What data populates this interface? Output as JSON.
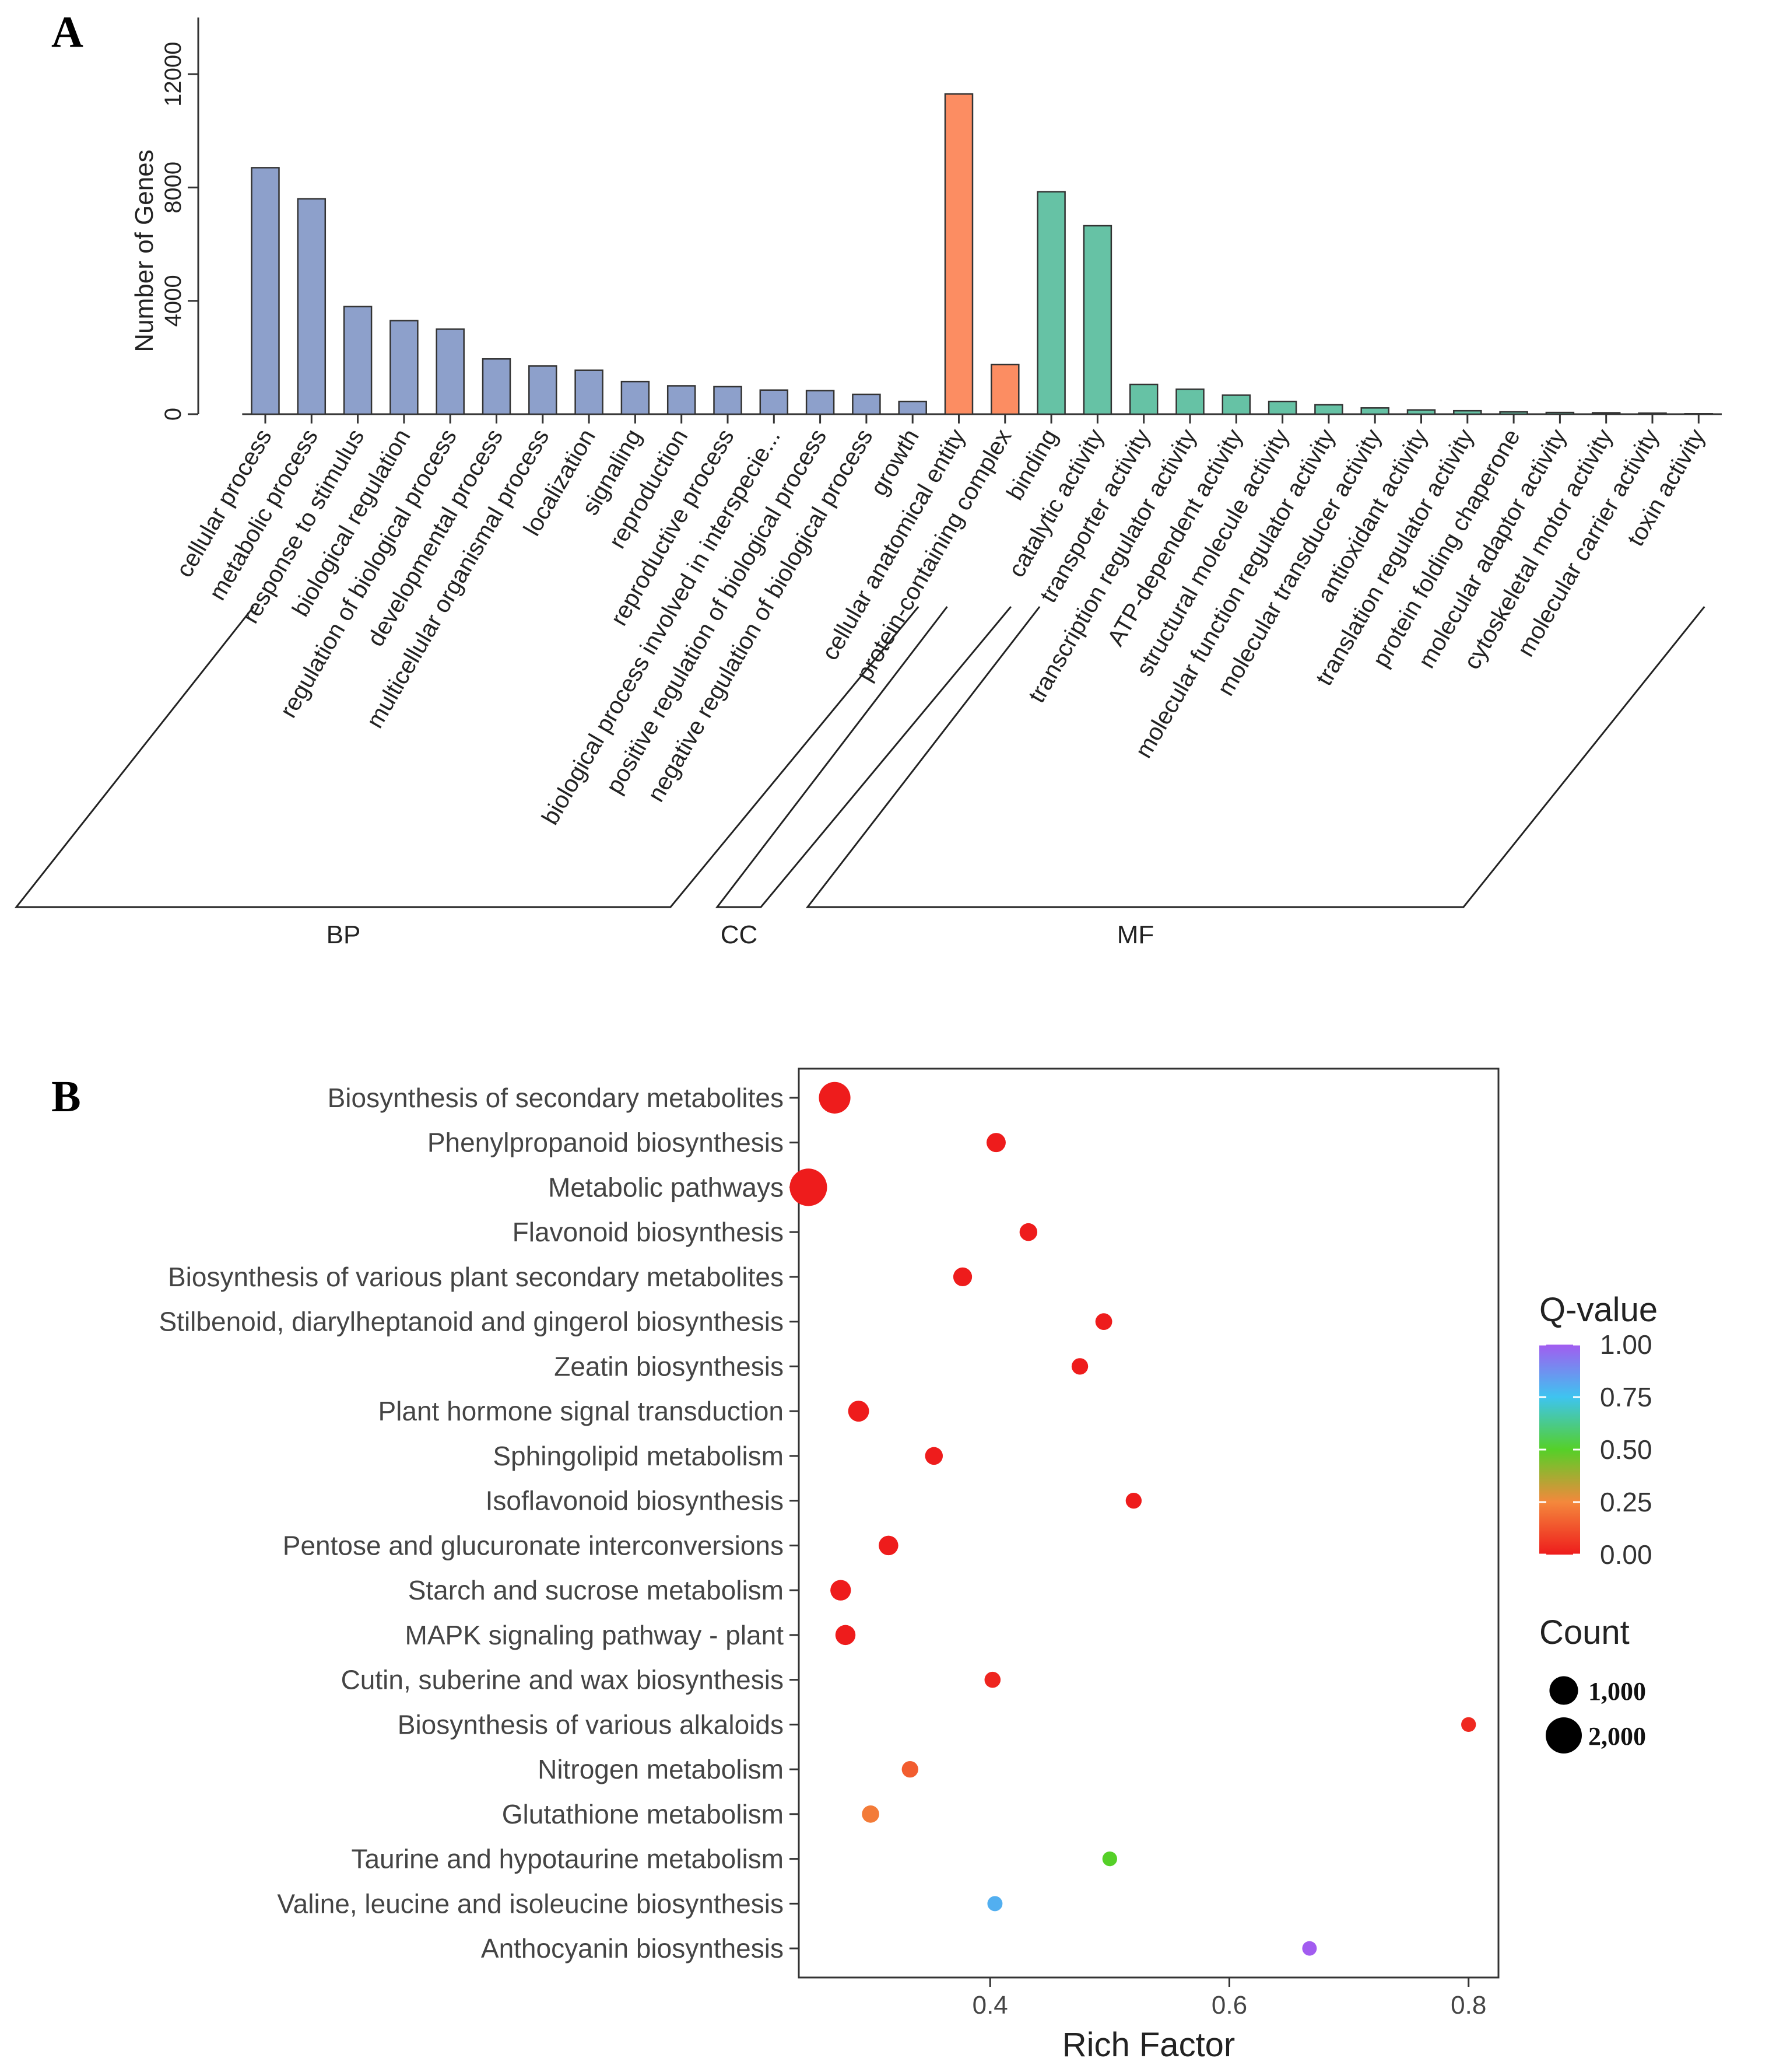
{
  "panels": {
    "a": "A",
    "b": "B"
  },
  "chart_data": [
    {
      "type": "bar",
      "panel": "A",
      "ylabel": "Number of Genes",
      "ylim": [
        0,
        14000
      ],
      "yticks": [
        0,
        4000,
        8000,
        12000
      ],
      "categories": [
        "cellular process",
        "metabolic process",
        "response to stimulus",
        "biological regulation",
        "regulation of biological process",
        "developmental process",
        "multicellular organismal process",
        "localization",
        "signaling",
        "reproduction",
        "reproductive process",
        "biological process involved in interspecie...",
        "positive regulation of biological process",
        "negative regulation of biological process",
        "growth",
        "cellular anatomical entity",
        "protein-containing complex",
        "binding",
        "catalytic activity",
        "transporter activity",
        "transcription regulator activity",
        "ATP-dependent activity",
        "structural molecule activity",
        "molecular function regulator activity",
        "molecular transducer activity",
        "antioxidant activity",
        "translation regulator activity",
        "protein folding chaperone",
        "molecular adaptor activity",
        "cytoskeletal motor activity",
        "molecular carrier activity",
        "toxin activity"
      ],
      "values": [
        8700,
        7600,
        3800,
        3300,
        3000,
        1950,
        1700,
        1550,
        1150,
        1000,
        970,
        850,
        830,
        700,
        450,
        11300,
        1750,
        7850,
        6650,
        1050,
        880,
        670,
        450,
        330,
        220,
        150,
        120,
        80,
        60,
        50,
        35,
        15
      ],
      "groups": [
        {
          "name": "BP",
          "count": 15,
          "color": "#8da0cb"
        },
        {
          "name": "CC",
          "count": 2,
          "color": "#fc8d62"
        },
        {
          "name": "MF",
          "count": 15,
          "color": "#66c2a5"
        }
      ]
    },
    {
      "type": "scatter",
      "panel": "B",
      "xlabel": "Rich Factor",
      "xlim": [
        0.24,
        0.825
      ],
      "xticks": [
        0.4,
        0.6,
        0.8
      ],
      "pathways": [
        {
          "name": "Biosynthesis of secondary metabolites",
          "rich": 0.27,
          "count": 1350,
          "q": 0.0
        },
        {
          "name": "Phenylpropanoid biosynthesis",
          "rich": 0.405,
          "count": 230,
          "q": 0.0
        },
        {
          "name": "Metabolic pathways",
          "rich": 0.248,
          "count": 2200,
          "q": 0.0
        },
        {
          "name": "Flavonoid biosynthesis",
          "rich": 0.432,
          "count": 160,
          "q": 0.0
        },
        {
          "name": "Biosynthesis of various plant secondary metabolites",
          "rich": 0.377,
          "count": 210,
          "q": 0.0
        },
        {
          "name": "Stilbenoid, diarylheptanoid and gingerol biosynthesis",
          "rich": 0.495,
          "count": 120,
          "q": 0.0
        },
        {
          "name": "Zeatin biosynthesis",
          "rich": 0.475,
          "count": 110,
          "q": 0.0
        },
        {
          "name": "Plant hormone signal transduction",
          "rich": 0.29,
          "count": 330,
          "q": 0.0
        },
        {
          "name": "Sphingolipid metabolism",
          "rich": 0.353,
          "count": 160,
          "q": 0.0
        },
        {
          "name": "Isoflavonoid biosynthesis",
          "rich": 0.52,
          "count": 90,
          "q": 0.0
        },
        {
          "name": "Pentose and glucuronate interconversions",
          "rich": 0.315,
          "count": 250,
          "q": 0.0
        },
        {
          "name": "Starch and sucrose metabolism",
          "rich": 0.275,
          "count": 310,
          "q": 0.0
        },
        {
          "name": "MAPK signaling pathway - plant",
          "rich": 0.279,
          "count": 280,
          "q": 0.0
        },
        {
          "name": "Cutin, suberine and wax biosynthesis",
          "rich": 0.402,
          "count": 95,
          "q": 0.02
        },
        {
          "name": "Biosynthesis of various alkaloids",
          "rich": 0.8,
          "count": 55,
          "q": 0.03
        },
        {
          "name": "Nitrogen metabolism",
          "rich": 0.333,
          "count": 110,
          "q": 0.15
        },
        {
          "name": "Glutathione metabolism",
          "rich": 0.3,
          "count": 140,
          "q": 0.22
        },
        {
          "name": "Taurine and hypotaurine metabolism",
          "rich": 0.5,
          "count": 55,
          "q": 0.5
        },
        {
          "name": "Valine, leucine and isoleucine biosynthesis",
          "rich": 0.404,
          "count": 65,
          "q": 0.8
        },
        {
          "name": "Anthocyanin biosynthesis",
          "rich": 0.667,
          "count": 50,
          "q": 1.0
        }
      ],
      "legend": {
        "color_title": "Q-value",
        "color_ticks": [
          "1.00",
          "0.75",
          "0.50",
          "0.25",
          "0.00"
        ],
        "color_tick_values": [
          1.0,
          0.75,
          0.5,
          0.25,
          0.0
        ],
        "size_title": "Count",
        "size_labels": [
          "1,000",
          "2,000"
        ],
        "size_values": [
          1000,
          2000
        ]
      },
      "colors": {
        "low": "#ee1c1c",
        "high": "#a25cf0"
      }
    }
  ]
}
